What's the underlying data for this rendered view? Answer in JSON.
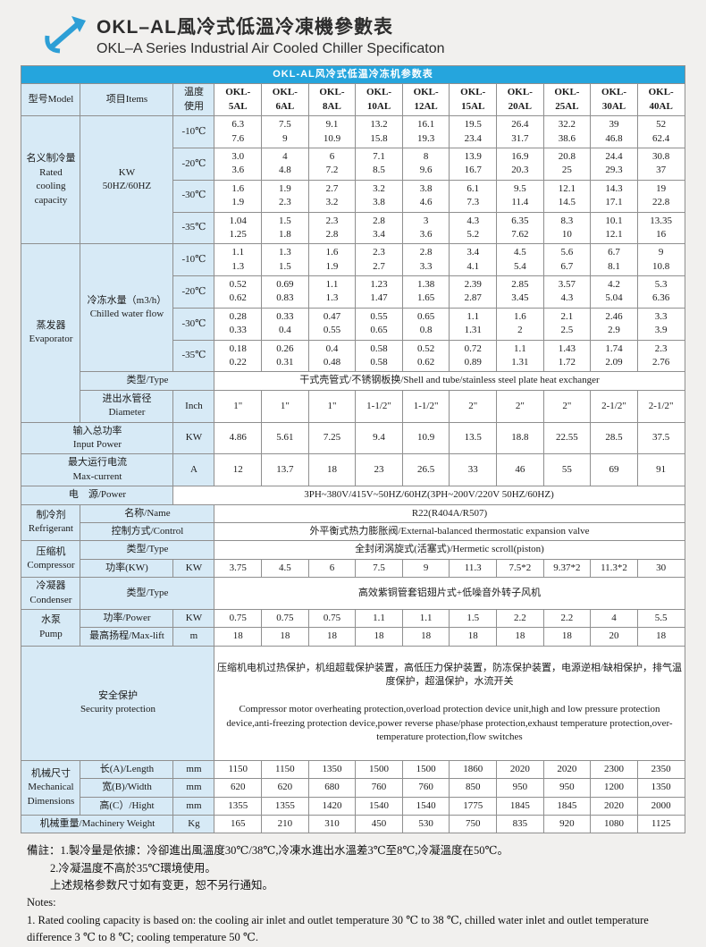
{
  "colors": {
    "accent_blue": "#25a5dd",
    "label_bg": "#d7eaf6",
    "border_gray": "#8f8f8f"
  },
  "page": {
    "title_zh": "OKL–AL風冷式低溫冷凍機參數表",
    "title_en": "OKL–A Series Industrial Air Cooled Chiller Specificaton"
  },
  "table": {
    "caption": "OKL-AL风冷式低温冷冻机参数表",
    "header": {
      "model": "型号Model",
      "items": "项目Items",
      "temp": "温度\n使用",
      "models": [
        "OKL-\n5AL",
        "OKL-\n6AL",
        "OKL-\n8AL",
        "OKL-\n10AL",
        "OKL-\n12AL",
        "OKL-\n15AL",
        "OKL-\n20AL",
        "OKL-\n25AL",
        "OKL-\n30AL",
        "OKL-\n40AL"
      ]
    }
  },
  "capacity": {
    "label": "名义制冷量\nRated\ncooling\ncapacity",
    "unit": "KW\n50HZ/60HZ",
    "rows": [
      {
        "temp": "-10℃",
        "values": [
          "6.3\n7.6",
          "7.5\n9",
          "9.1\n10.9",
          "13.2\n15.8",
          "16.1\n19.3",
          "19.5\n23.4",
          "26.4\n31.7",
          "32.2\n38.6",
          "39\n46.8",
          "52\n62.4"
        ]
      },
      {
        "temp": "-20℃",
        "values": [
          "3.0\n3.6",
          "4\n4.8",
          "6\n7.2",
          "7.1\n8.5",
          "8\n9.6",
          "13.9\n16.7",
          "16.9\n20.3",
          "20.8\n25",
          "24.4\n29.3",
          "30.8\n37"
        ]
      },
      {
        "temp": "-30℃",
        "values": [
          "1.6\n1.9",
          "1.9\n2.3",
          "2.7\n3.2",
          "3.2\n3.8",
          "3.8\n4.6",
          "6.1\n7.3",
          "9.5\n11.4",
          "12.1\n14.5",
          "14.3\n17.1",
          "19\n22.8"
        ]
      },
      {
        "temp": "-35℃",
        "values": [
          "1.04\n1.25",
          "1.5\n1.8",
          "2.3\n2.8",
          "2.8\n3.4",
          "3\n3.6",
          "4.3\n5.2",
          "6.35\n7.62",
          "8.3\n10",
          "10.1\n12.1",
          "13.35\n16"
        ]
      }
    ]
  },
  "evaporator": {
    "label": "蒸发器\nEvaporator",
    "waterflow": {
      "label": "冷冻水量（m3/h）\nChilled water flow",
      "rows": [
        {
          "temp": "-10℃",
          "values": [
            "1.1\n1.3",
            "1.3\n1.5",
            "1.6\n1.9",
            "2.3\n2.7",
            "2.8\n3.3",
            "3.4\n4.1",
            "4.5\n5.4",
            "5.6\n6.7",
            "6.7\n8.1",
            "9\n10.8"
          ]
        },
        {
          "temp": "-20℃",
          "values": [
            "0.52\n0.62",
            "0.69\n0.83",
            "1.1\n1.3",
            "1.23\n1.47",
            "1.38\n1.65",
            "2.39\n2.87",
            "2.85\n3.45",
            "3.57\n4.3",
            "4.2\n5.04",
            "5.3\n6.36"
          ]
        },
        {
          "temp": "-30℃",
          "values": [
            "0.28\n0.33",
            "0.33\n0.4",
            "0.47\n0.55",
            "0.55\n0.65",
            "0.65\n0.8",
            "1.1\n1.31",
            "1.6\n2",
            "2.1\n2.5",
            "2.46\n2.9",
            "3.3\n3.9"
          ]
        },
        {
          "temp": "-35℃",
          "values": [
            "0.18\n0.22",
            "0.26\n0.31",
            "0.4\n0.48",
            "0.58\n0.58",
            "0.52\n0.62",
            "0.72\n0.89",
            "1.1\n1.31",
            "1.43\n1.72",
            "1.74\n2.09",
            "2.3\n2.76"
          ]
        }
      ]
    },
    "type_row": {
      "label": "类型/Type",
      "value": "干式壳管式/不锈钢板换/Shell and tube/stainless steel plate heat exchanger"
    },
    "diameter_row": {
      "label": "进出水管径\nDiameter",
      "unit": "Inch",
      "values": [
        "1\"",
        "1\"",
        "1\"",
        "1-1/2\"",
        "1-1/2\"",
        "2\"",
        "2\"",
        "2\"",
        "2-1/2\"",
        "2-1/2\""
      ]
    }
  },
  "input_power": {
    "label": "输入总功率\nInput Power",
    "unit": "KW",
    "values": [
      "4.86",
      "5.61",
      "7.25",
      "9.4",
      "10.9",
      "13.5",
      "18.8",
      "22.55",
      "28.5",
      "37.5"
    ]
  },
  "max_current": {
    "label": "最大运行电流\nMax-current",
    "unit": "A",
    "values": [
      "12",
      "13.7",
      "18",
      "23",
      "26.5",
      "33",
      "46",
      "55",
      "69",
      "91"
    ]
  },
  "power_row": {
    "label": "电　源/Power",
    "value": "3PH~380V/415V~50HZ/60HZ(3PH~200V/220V 50HZ/60HZ)"
  },
  "refrigerant": {
    "label": "制冷剂\nRefrigerant",
    "name_row": {
      "label": "名称/Name",
      "value": "R22(R404A/R507)"
    },
    "control_row": {
      "label": "控制方式/Control",
      "value": "外平衡式热力膨胀阀/External-balanced thermostatic expansion valve"
    }
  },
  "compressor": {
    "label": "压缩机\nCompressor",
    "type_row": {
      "label": "类型/Type",
      "value": "全封闭涡旋式(活塞式)/Hermetic scroll(piston)"
    },
    "power_row": {
      "label": "功率(KW)",
      "unit": "KW",
      "values": [
        "3.75",
        "4.5",
        "6",
        "7.5",
        "9",
        "11.3",
        "7.5*2",
        "9.37*2",
        "11.3*2",
        "30"
      ]
    }
  },
  "condenser": {
    "label": "冷凝器\nCondenser",
    "type_row": {
      "label": "类型/Type",
      "value": "高效紫铜管套铝翅片式+低噪音外转子风机"
    }
  },
  "pump": {
    "label": "水泵\nPump",
    "power_row": {
      "label": "功率/Power",
      "unit": "KW",
      "values": [
        "0.75",
        "0.75",
        "0.75",
        "1.1",
        "1.1",
        "1.5",
        "2.2",
        "2.2",
        "4",
        "5.5"
      ]
    },
    "lift_row": {
      "label": "最高扬程/Max-lift",
      "unit": "m",
      "values": [
        "18",
        "18",
        "18",
        "18",
        "18",
        "18",
        "18",
        "18",
        "20",
        "18"
      ]
    }
  },
  "security": {
    "label": "安全保护\nSecurity protection",
    "text_zh": "压缩机电机过热保护，机组超载保护装置，高低压力保护装置，防冻保护装置，电源逆相/缺相保护，排气温度保护，超温保护，水流开关",
    "text_en": " Compressor motor overheating protection,overload protection device unit,high and low pressure protection device,anti-freezing protection device,power reverse phase/phase protection,exhaust temperature protection,over-temperature protection,flow switches"
  },
  "mechanical": {
    "label": "机械尺寸\nMechanical\nDimensions",
    "rows": [
      {
        "label": "长(A)/Length",
        "unit": "mm",
        "values": [
          "1150",
          "1150",
          "1350",
          "1500",
          "1500",
          "1860",
          "2020",
          "2020",
          "2300",
          "2350"
        ]
      },
      {
        "label": "宽(B)/Width",
        "unit": "mm",
        "values": [
          "620",
          "620",
          "680",
          "760",
          "760",
          "850",
          "950",
          "950",
          "1200",
          "1350"
        ]
      },
      {
        "label": "高(C）/Hight",
        "unit": "mm",
        "values": [
          "1355",
          "1355",
          "1420",
          "1540",
          "1540",
          "1775",
          "1845",
          "1845",
          "2020",
          "2000"
        ]
      }
    ]
  },
  "weight": {
    "label": "机械重量/Machinery Weight",
    "unit": "Kg",
    "values": [
      "165",
      "210",
      "310",
      "450",
      "530",
      "750",
      "835",
      "920",
      "1080",
      "1125"
    ]
  },
  "notes": {
    "zh1": "備註：1.製冷量是依據：冷卻進出風溫度30℃/38℃,冷凍水進出水溫差3℃至8℃,冷凝溫度在50℃。",
    "zh2": "2.冷凝温度不高於35℃環境使用。",
    "zh3": "上述规格参数尺寸如有变更，恕不另行通知。",
    "en_header": "Notes:",
    "en1": "1. Rated cooling capacity is based on: the cooling air inlet and outlet temperature 30 ℃ to 38 ℃, chilled water inlet and outlet temperature difference 3 ℃ to 8 ℃; cooling temperature 50 ℃."
  }
}
